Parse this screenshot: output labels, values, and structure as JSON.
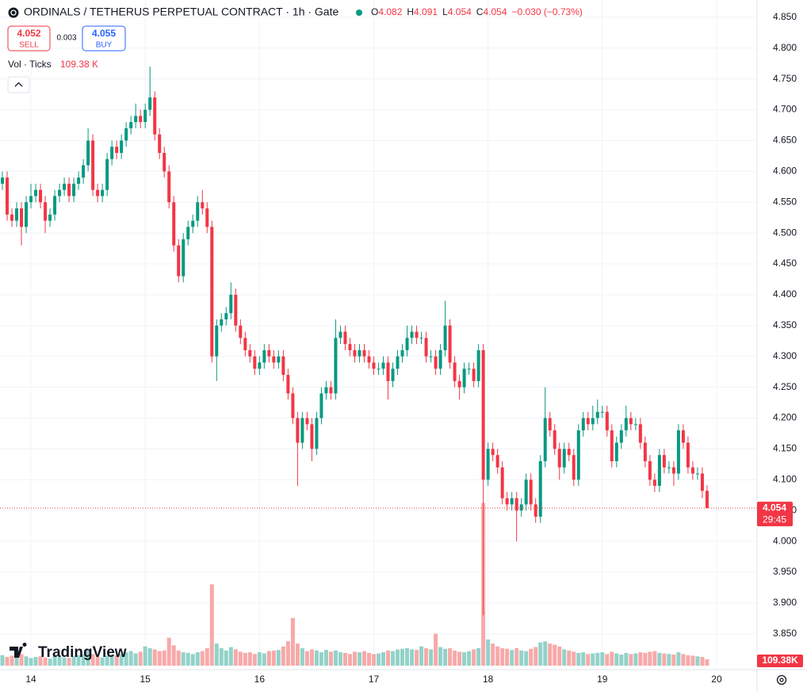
{
  "chart_data": {
    "type": "candlestick",
    "title": "ORDINALS / TETHERUS PERPETUAL CONTRACT · 1h · Gate",
    "ohlc_labels": [
      "O",
      "H",
      "L",
      "C"
    ],
    "change": "−0.030 (−0.73%)",
    "sell_price": 4.052,
    "sell_label": "SELL",
    "spread": 0.003,
    "buy_price": 4.055,
    "buy_label": "BUY",
    "volume_title": "Vol · Ticks",
    "volume_last_label": "109.38 K",
    "volume_badge": "109.38K",
    "countdown": "29:45",
    "logo": "TradingView",
    "up_color": "#089981",
    "down_color": "#f23645",
    "volume_up_color": "#92d2c9",
    "volume_down_color": "#f7a9a9",
    "grid": true,
    "xlim": [
      -0.5,
      158.5
    ],
    "xticks": [
      {
        "value": 6,
        "label": "14"
      },
      {
        "value": 30,
        "label": "15"
      },
      {
        "value": 54,
        "label": "16"
      },
      {
        "value": 78,
        "label": "17"
      },
      {
        "value": 102,
        "label": "18"
      },
      {
        "value": 126,
        "label": "19"
      },
      {
        "value": 150,
        "label": "20"
      }
    ],
    "ylim": [
      3.792,
      4.878
    ],
    "yticks": [
      {
        "value": 3.85,
        "label": "3.850"
      },
      {
        "value": 3.9,
        "label": "3.900"
      },
      {
        "value": 3.95,
        "label": "3.950"
      },
      {
        "value": 4.0,
        "label": "4.000"
      },
      {
        "value": 4.05,
        "label": "4.050"
      },
      {
        "value": 4.1,
        "label": "4.100"
      },
      {
        "value": 4.15,
        "label": "4.150"
      },
      {
        "value": 4.2,
        "label": "4.200"
      },
      {
        "value": 4.25,
        "label": "4.250"
      },
      {
        "value": 4.3,
        "label": "4.300"
      },
      {
        "value": 4.35,
        "label": "4.350"
      },
      {
        "value": 4.4,
        "label": "4.400"
      },
      {
        "value": 4.45,
        "label": "4.450"
      },
      {
        "value": 4.5,
        "label": "4.500"
      },
      {
        "value": 4.55,
        "label": "4.550"
      },
      {
        "value": 4.6,
        "label": "4.600"
      },
      {
        "value": 4.65,
        "label": "4.650"
      },
      {
        "value": 4.7,
        "label": "4.700"
      },
      {
        "value": 4.75,
        "label": "4.750"
      },
      {
        "value": 4.8,
        "label": "4.800"
      },
      {
        "value": 4.85,
        "label": "4.850"
      }
    ],
    "y2lim": [
      0,
      3000
    ],
    "open": [
      4.58,
      4.59,
      4.53,
      4.52,
      4.54,
      4.51,
      4.55,
      4.56,
      4.57,
      4.55,
      4.52,
      4.53,
      4.56,
      4.57,
      4.58,
      4.56,
      4.58,
      4.59,
      4.61,
      4.65,
      4.57,
      4.56,
      4.57,
      4.62,
      4.64,
      4.63,
      4.65,
      4.67,
      4.68,
      4.69,
      4.68,
      4.7,
      4.72,
      4.66,
      4.63,
      4.6,
      4.55,
      4.48,
      4.43,
      4.49,
      4.51,
      4.52,
      4.55,
      4.54,
      4.51,
      4.3,
      4.35,
      4.36,
      4.37,
      4.4,
      4.35,
      4.33,
      4.31,
      4.3,
      4.28,
      4.29,
      4.31,
      4.3,
      4.29,
      4.3,
      4.27,
      4.24,
      4.2,
      4.16,
      4.2,
      4.19,
      4.15,
      4.2,
      4.24,
      4.25,
      4.24,
      4.33,
      4.34,
      4.32,
      4.31,
      4.3,
      4.31,
      4.3,
      4.29,
      4.28,
      4.28,
      4.29,
      4.26,
      4.28,
      4.3,
      4.31,
      4.33,
      4.34,
      4.33,
      4.33,
      4.3,
      4.3,
      4.28,
      4.31,
      4.35,
      4.29,
      4.26,
      4.25,
      4.28,
      4.28,
      4.26,
      4.31,
      4.1,
      4.15,
      4.14,
      4.12,
      4.07,
      4.06,
      4.07,
      4.05,
      4.06,
      4.1,
      4.06,
      4.04,
      4.13,
      4.2,
      4.18,
      4.15,
      4.12,
      4.15,
      4.14,
      4.1,
      4.18,
      4.2,
      4.19,
      4.2,
      4.21,
      4.21,
      4.18,
      4.13,
      4.16,
      4.18,
      4.2,
      4.19,
      4.19,
      4.16,
      4.13,
      4.1,
      4.09,
      4.14,
      4.12,
      4.12,
      4.11,
      4.18,
      4.16,
      4.12,
      4.11,
      4.11,
      4.082
    ],
    "high": [
      4.6,
      4.6,
      4.54,
      4.55,
      4.55,
      4.56,
      4.58,
      4.58,
      4.58,
      4.56,
      4.54,
      4.57,
      4.58,
      4.59,
      4.59,
      4.59,
      4.6,
      4.62,
      4.67,
      4.66,
      4.58,
      4.58,
      4.63,
      4.65,
      4.65,
      4.66,
      4.68,
      4.69,
      4.71,
      4.7,
      4.71,
      4.77,
      4.73,
      4.67,
      4.64,
      4.61,
      4.56,
      4.49,
      4.5,
      4.52,
      4.53,
      4.56,
      4.57,
      4.55,
      4.52,
      4.36,
      4.37,
      4.38,
      4.42,
      4.41,
      4.36,
      4.34,
      4.32,
      4.31,
      4.3,
      4.32,
      4.32,
      4.31,
      4.31,
      4.31,
      4.28,
      4.25,
      4.21,
      4.21,
      4.21,
      4.2,
      4.21,
      4.25,
      4.26,
      4.26,
      4.36,
      4.35,
      4.35,
      4.33,
      4.32,
      4.32,
      4.32,
      4.31,
      4.3,
      4.29,
      4.3,
      4.3,
      4.29,
      4.31,
      4.32,
      4.35,
      4.35,
      4.35,
      4.34,
      4.34,
      4.31,
      4.31,
      4.32,
      4.39,
      4.36,
      4.3,
      4.27,
      4.29,
      4.29,
      4.29,
      4.32,
      4.32,
      4.16,
      4.16,
      4.15,
      4.13,
      4.08,
      4.08,
      4.08,
      4.07,
      4.11,
      4.11,
      4.07,
      4.14,
      4.25,
      4.21,
      4.19,
      4.16,
      4.16,
      4.16,
      4.15,
      4.19,
      4.21,
      4.21,
      4.22,
      4.23,
      4.22,
      4.22,
      4.19,
      4.17,
      4.19,
      4.22,
      4.21,
      4.2,
      4.2,
      4.17,
      4.14,
      4.11,
      4.15,
      4.15,
      4.13,
      4.13,
      4.19,
      4.19,
      4.17,
      4.13,
      4.12,
      4.12,
      4.091
    ],
    "low": [
      4.57,
      4.52,
      4.51,
      4.51,
      4.48,
      4.5,
      4.54,
      4.55,
      4.54,
      4.5,
      4.51,
      4.52,
      4.55,
      4.56,
      4.55,
      4.55,
      4.57,
      4.58,
      4.6,
      4.56,
      4.55,
      4.55,
      4.56,
      4.61,
      4.62,
      4.62,
      4.64,
      4.66,
      4.67,
      4.67,
      4.67,
      4.69,
      4.65,
      4.62,
      4.59,
      4.54,
      4.47,
      4.42,
      4.42,
      4.48,
      4.5,
      4.51,
      4.53,
      4.5,
      4.29,
      4.26,
      4.34,
      4.35,
      4.36,
      4.34,
      4.32,
      4.3,
      4.29,
      4.27,
      4.27,
      4.28,
      4.29,
      4.28,
      4.28,
      4.26,
      4.23,
      4.19,
      4.09,
      4.15,
      4.18,
      4.13,
      4.14,
      4.19,
      4.23,
      4.23,
      4.23,
      4.32,
      4.31,
      4.3,
      4.29,
      4.29,
      4.29,
      4.28,
      4.27,
      4.27,
      4.27,
      4.23,
      4.25,
      4.27,
      4.29,
      4.3,
      4.32,
      4.32,
      4.32,
      4.29,
      4.29,
      4.27,
      4.27,
      4.3,
      4.28,
      4.25,
      4.23,
      4.24,
      4.27,
      4.25,
      4.25,
      3.88,
      4.09,
      4.13,
      4.11,
      4.06,
      4.05,
      4.05,
      4.0,
      4.04,
      4.05,
      4.05,
      4.03,
      4.03,
      4.12,
      4.17,
      4.14,
      4.1,
      4.11,
      4.13,
      4.09,
      4.09,
      4.17,
      4.18,
      4.18,
      4.19,
      4.2,
      4.17,
      4.12,
      4.12,
      4.15,
      4.17,
      4.18,
      4.18,
      4.15,
      4.12,
      4.09,
      4.08,
      4.08,
      4.11,
      4.11,
      4.09,
      4.1,
      4.15,
      4.11,
      4.1,
      4.1,
      4.07,
      4.054
    ],
    "close": [
      4.59,
      4.53,
      4.52,
      4.54,
      4.51,
      4.55,
      4.56,
      4.57,
      4.55,
      4.52,
      4.53,
      4.56,
      4.57,
      4.58,
      4.56,
      4.58,
      4.59,
      4.61,
      4.65,
      4.57,
      4.56,
      4.57,
      4.62,
      4.64,
      4.63,
      4.65,
      4.67,
      4.68,
      4.69,
      4.68,
      4.7,
      4.72,
      4.66,
      4.63,
      4.6,
      4.55,
      4.48,
      4.43,
      4.49,
      4.51,
      4.52,
      4.55,
      4.54,
      4.51,
      4.3,
      4.35,
      4.36,
      4.37,
      4.4,
      4.35,
      4.33,
      4.31,
      4.3,
      4.28,
      4.29,
      4.31,
      4.3,
      4.29,
      4.3,
      4.27,
      4.24,
      4.2,
      4.16,
      4.2,
      4.19,
      4.15,
      4.2,
      4.24,
      4.25,
      4.24,
      4.33,
      4.34,
      4.32,
      4.31,
      4.3,
      4.31,
      4.3,
      4.29,
      4.28,
      4.28,
      4.29,
      4.26,
      4.28,
      4.3,
      4.31,
      4.33,
      4.34,
      4.33,
      4.33,
      4.3,
      4.3,
      4.28,
      4.31,
      4.35,
      4.29,
      4.26,
      4.25,
      4.28,
      4.28,
      4.26,
      4.31,
      4.1,
      4.15,
      4.14,
      4.12,
      4.07,
      4.06,
      4.07,
      4.05,
      4.06,
      4.1,
      4.06,
      4.04,
      4.13,
      4.2,
      4.18,
      4.15,
      4.12,
      4.15,
      4.14,
      4.1,
      4.18,
      4.2,
      4.19,
      4.2,
      4.21,
      4.21,
      4.18,
      4.13,
      4.16,
      4.18,
      4.2,
      4.19,
      4.19,
      4.16,
      4.13,
      4.1,
      4.09,
      4.14,
      4.12,
      4.12,
      4.11,
      4.18,
      4.16,
      4.12,
      4.11,
      4.11,
      4.082,
      4.054
    ],
    "volume": [
      180,
      150,
      170,
      140,
      200,
      160,
      130,
      150,
      160,
      140,
      120,
      170,
      150,
      140,
      130,
      160,
      180,
      190,
      260,
      200,
      150,
      140,
      170,
      190,
      180,
      200,
      230,
      250,
      210,
      240,
      330,
      300,
      280,
      250,
      260,
      480,
      350,
      260,
      230,
      220,
      200,
      230,
      250,
      300,
      1400,
      380,
      300,
      260,
      320,
      280,
      240,
      220,
      230,
      200,
      230,
      210,
      250,
      260,
      270,
      330,
      420,
      820,
      380,
      300,
      250,
      280,
      260,
      230,
      270,
      240,
      260,
      230,
      220,
      200,
      240,
      230,
      250,
      220,
      200,
      210,
      230,
      260,
      250,
      280,
      290,
      300,
      280,
      270,
      330,
      300,
      280,
      550,
      320,
      290,
      300,
      260,
      240,
      230,
      250,
      280,
      300,
      2800,
      450,
      380,
      330,
      300,
      290,
      270,
      300,
      260,
      250,
      290,
      320,
      400,
      420,
      380,
      360,
      330,
      280,
      260,
      240,
      220,
      230,
      200,
      210,
      220,
      230,
      200,
      240,
      210,
      190,
      220,
      200,
      210,
      230,
      220,
      240,
      250,
      220,
      210,
      200,
      190,
      230,
      200,
      180,
      170,
      160,
      150,
      109.38
    ]
  }
}
